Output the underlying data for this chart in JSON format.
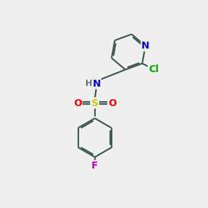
{
  "background_color": "#efefef",
  "atom_colors": {
    "C": "#404040",
    "N": "#0000cc",
    "O": "#ff0000",
    "S": "#cccc00",
    "Cl": "#00aa00",
    "F": "#cc00cc",
    "H": "#607070"
  },
  "bond_color": "#3a5a50",
  "bond_width": 1.6,
  "font_size_atom": 10,
  "xlim": [
    0,
    10
  ],
  "ylim": [
    0,
    10
  ]
}
